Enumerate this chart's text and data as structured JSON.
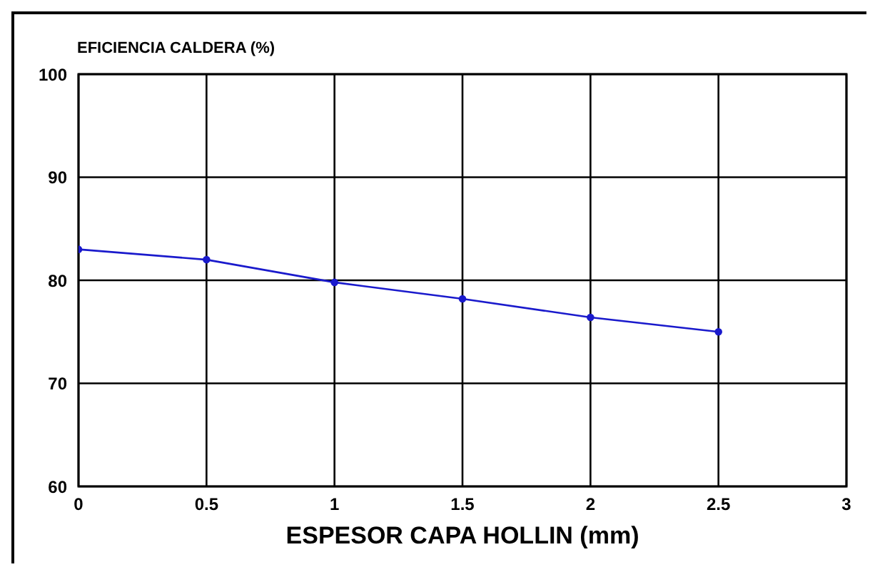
{
  "chart_data": {
    "type": "line",
    "ylabel": "EFICIENCIA CALDERA (%)",
    "xlabel": "ESPESOR CAPA HOLLIN (mm)",
    "x": [
      0,
      0.5,
      1,
      1.5,
      2,
      2.5
    ],
    "series": [
      {
        "color": "#1a1acc",
        "values": [
          83.0,
          82.0,
          79.8,
          78.2,
          76.4,
          75.0
        ]
      }
    ],
    "xlim": [
      0,
      3
    ],
    "xticks": [
      0,
      0.5,
      1,
      1.5,
      2,
      2.5,
      3
    ],
    "ylim": [
      60,
      100
    ],
    "yticks": [
      60,
      70,
      80,
      90,
      100
    ],
    "grid": true,
    "marker": "circle",
    "legend": false
  }
}
